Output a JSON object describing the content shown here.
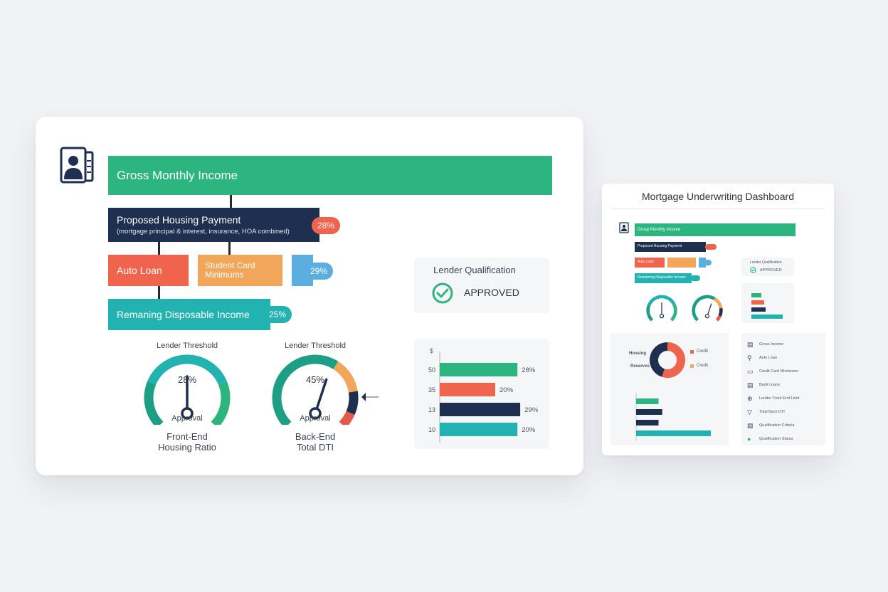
{
  "colors": {
    "green": "#2db57f",
    "navy": "#1e2f4f",
    "coral": "#f0644d",
    "orange": "#f2a65a",
    "blue": "#5aaee0",
    "teal": "#22b2b0",
    "red": "#e25a4c"
  },
  "main": {
    "icon": "person-id-card-icon",
    "income_bar": {
      "label": "Gross Monthly Income"
    },
    "housing_bar": {
      "title": "Proposed Housing Payment",
      "subtitle": "(mortgage principal & interest, insurance, HOA combined)",
      "badge": "28%"
    },
    "auto_loan": {
      "label": "Auto Loan"
    },
    "student_card": {
      "line1": "Student Card",
      "line2": "Minimums"
    },
    "debts_badge": "29%",
    "remaining_bar": {
      "label": "Remaning Disposable Income",
      "badge": "25%"
    },
    "gauges": [
      {
        "threshold": "Lender Threshold",
        "value_text": "28%",
        "value": 28,
        "status": "Approval",
        "caption_line1": "Front-End",
        "caption_line2": "Housing Ratio"
      },
      {
        "threshold": "Lender Threshold",
        "value_text": "45%",
        "value": 45,
        "status": "Approval",
        "caption_line1": "Back-End",
        "caption_line2": "Total DTI"
      }
    ],
    "qualification": {
      "title": "Lender Qualification",
      "status": "APPROVED"
    },
    "bar_chart": {
      "y_header": "$",
      "bars": [
        {
          "tick": "50",
          "value_text": "28%",
          "value": 28,
          "color": "#2db57f"
        },
        {
          "tick": "35",
          "value_text": "20%",
          "value": 20,
          "color": "#f0644d"
        },
        {
          "tick": "13",
          "value_text": "29%",
          "value": 29,
          "color": "#1e2f4f"
        },
        {
          "tick": "10",
          "value_text": "20%",
          "value": 20,
          "color": "#22b2b0"
        }
      ]
    }
  },
  "mini": {
    "title": "Mortgage Underwriting Dashboard",
    "income_label": "Grosp Monthly Income",
    "housing_label": "Proposed Housing Payment",
    "auto_label": "Auto Loan",
    "remaining_label": "Remaining Disposable Income",
    "qualification_title": "Lender Qualification",
    "qualification_status": "APPROVED",
    "donut": {
      "left_labels": [
        "Housing",
        "Reserves"
      ],
      "legend": [
        "Credit",
        "Credit"
      ],
      "slices": [
        {
          "value": 55,
          "color": "#f0644d"
        },
        {
          "value": 45,
          "color": "#1e2f4f"
        }
      ]
    },
    "hbars": [
      {
        "value": 30,
        "color": "#2db57f"
      },
      {
        "value": 35,
        "color": "#1e2f4f"
      },
      {
        "value": 30,
        "color": "#1e2f4f"
      },
      {
        "value": 100,
        "color": "#22b2b0"
      }
    ],
    "checklist": [
      {
        "icon": "document-icon",
        "label": "Gross Income"
      },
      {
        "icon": "car-icon",
        "label": "Auto Loan"
      },
      {
        "icon": "card-icon",
        "label": "Credit Card Minimums"
      },
      {
        "icon": "document-icon",
        "label": "Bank Loans"
      },
      {
        "icon": "globe-icon",
        "label": "Lender Front-End Limit"
      },
      {
        "icon": "funnel-icon",
        "label": "Total Back DTI"
      },
      {
        "icon": "document-icon",
        "label": "Qualification Criteria"
      },
      {
        "icon": "status-dot-icon",
        "label": "Qualification Status"
      }
    ]
  }
}
